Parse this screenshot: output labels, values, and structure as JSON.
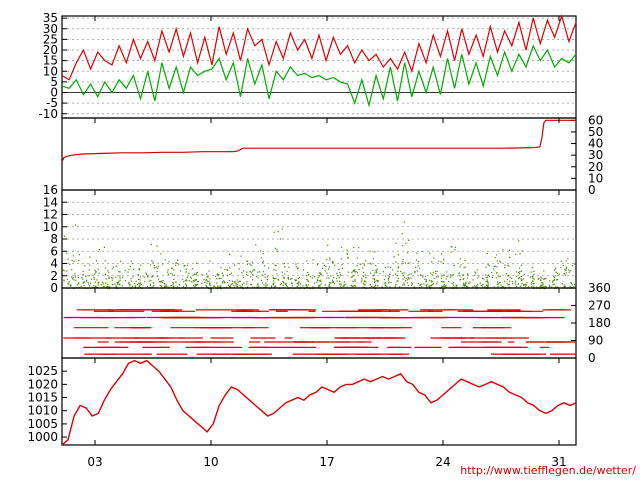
{
  "footer": {
    "credit": "http://www.tiefflegen.de/wetter/"
  },
  "chart_data": [
    {
      "type": "line",
      "panel": "temperature",
      "yticks": [
        "35",
        "30",
        "25",
        "20",
        "15",
        "10",
        "5",
        "0",
        "-5",
        "-10"
      ],
      "ylim": [
        -12,
        36
      ],
      "grid": true,
      "x_label_days": [
        "03",
        "10",
        "17",
        "24",
        "31"
      ],
      "series": [
        {
          "color": "#dd0000",
          "values": [
            8,
            6,
            14,
            20,
            11,
            19,
            15,
            13,
            22,
            14,
            25,
            16,
            24,
            15,
            29,
            19,
            30,
            17,
            28,
            14,
            26,
            13,
            31,
            18,
            28,
            15,
            30,
            22,
            25,
            13,
            24,
            16,
            28,
            20,
            25,
            16,
            27,
            15,
            26,
            18,
            22,
            14,
            20,
            15,
            18,
            12,
            16,
            11,
            19,
            10,
            23,
            14,
            27,
            17,
            29,
            15,
            30,
            18,
            27,
            17,
            31,
            19,
            29,
            22,
            33,
            20,
            35,
            23,
            34,
            26,
            36,
            24,
            33
          ]
        },
        {
          "color": "#00aa00",
          "values": [
            3,
            2,
            6,
            -1,
            4,
            -2,
            5,
            0,
            6,
            2,
            8,
            -3,
            10,
            -4,
            14,
            2,
            12,
            0,
            12,
            8,
            10,
            11,
            16,
            6,
            14,
            -2,
            16,
            4,
            13,
            -3,
            10,
            6,
            12,
            8,
            9,
            7,
            8,
            6,
            7,
            5,
            4,
            -5,
            6,
            -6,
            8,
            -3,
            12,
            -4,
            14,
            -2,
            10,
            0,
            12,
            -1,
            16,
            2,
            18,
            4,
            14,
            3,
            17,
            8,
            19,
            10,
            18,
            12,
            22,
            15,
            20,
            12,
            16,
            14,
            18
          ]
        }
      ]
    },
    {
      "type": "line",
      "panel": "cumulative-rain",
      "yticks": [
        "60",
        "50",
        "40",
        "30",
        "20",
        "10",
        "0"
      ],
      "ylim": [
        0,
        62
      ],
      "series": [
        {
          "color": "#cc0000",
          "x": [
            0,
            1,
            2,
            5,
            10,
            20,
            40,
            60,
            80,
            100,
            120,
            140,
            160,
            170,
            175,
            180,
            220,
            260,
            300,
            340,
            400,
            440,
            470,
            476,
            478,
            480,
            482,
            512
          ],
          "values": [
            25,
            26,
            28,
            29,
            30,
            31,
            31.5,
            32,
            32,
            32.5,
            32.5,
            33,
            33,
            33,
            33.5,
            36,
            36,
            36,
            36,
            36,
            36,
            36,
            36.5,
            37,
            45,
            58,
            60,
            60
          ]
        }
      ]
    },
    {
      "type": "scatter",
      "panel": "wind-speed",
      "yticks": [
        "16",
        "14",
        "12",
        "10",
        "8",
        "6",
        "4",
        "2",
        "0"
      ],
      "ylim": [
        0,
        16
      ],
      "grid": true,
      "series": [
        {
          "color": "#448800",
          "peaks": [
            13,
            9,
            6,
            8,
            7,
            6,
            5,
            7,
            10,
            5,
            7,
            6,
            4,
            5,
            7,
            6,
            8,
            10,
            6,
            11,
            6,
            4,
            5,
            9,
            6,
            10,
            8,
            9,
            6,
            7,
            13,
            7,
            5,
            8,
            9,
            6,
            5,
            4,
            8,
            7,
            9,
            5,
            4,
            5,
            6,
            7
          ]
        }
      ]
    },
    {
      "type": "scatter",
      "panel": "wind-direction",
      "yticks": [
        "360",
        "270",
        "180",
        "90",
        "0"
      ],
      "ylim": [
        0,
        360
      ],
      "series": [
        {
          "color": "#dd0000"
        }
      ]
    },
    {
      "type": "line",
      "panel": "pressure",
      "yticks": [
        "1025",
        "1020",
        "1015",
        "1010",
        "1005",
        "1000"
      ],
      "ylim": [
        997,
        1030
      ],
      "x_ticks": [
        "03",
        "10",
        "17",
        "24",
        "31"
      ],
      "series": [
        {
          "color": "#dd0000",
          "values": [
            997,
            999,
            1008,
            1012,
            1011,
            1008,
            1009,
            1014,
            1018,
            1021,
            1024,
            1028,
            1029,
            1028,
            1029,
            1027,
            1025,
            1022,
            1019,
            1014,
            1010,
            1008,
            1006,
            1004,
            1002,
            1005,
            1012,
            1016,
            1019,
            1018,
            1016,
            1014,
            1012,
            1010,
            1008,
            1009,
            1011,
            1013,
            1014,
            1015,
            1014,
            1016,
            1017,
            1019,
            1018,
            1017,
            1019,
            1020,
            1020,
            1021,
            1022,
            1021,
            1022,
            1023,
            1022,
            1023,
            1024,
            1021,
            1020,
            1017,
            1016,
            1013,
            1014,
            1016,
            1018,
            1020,
            1022,
            1021,
            1020,
            1019,
            1020,
            1021,
            1020,
            1019,
            1017,
            1016,
            1015,
            1013,
            1012,
            1010,
            1009,
            1010,
            1012,
            1013,
            1012,
            1013
          ]
        }
      ]
    }
  ]
}
